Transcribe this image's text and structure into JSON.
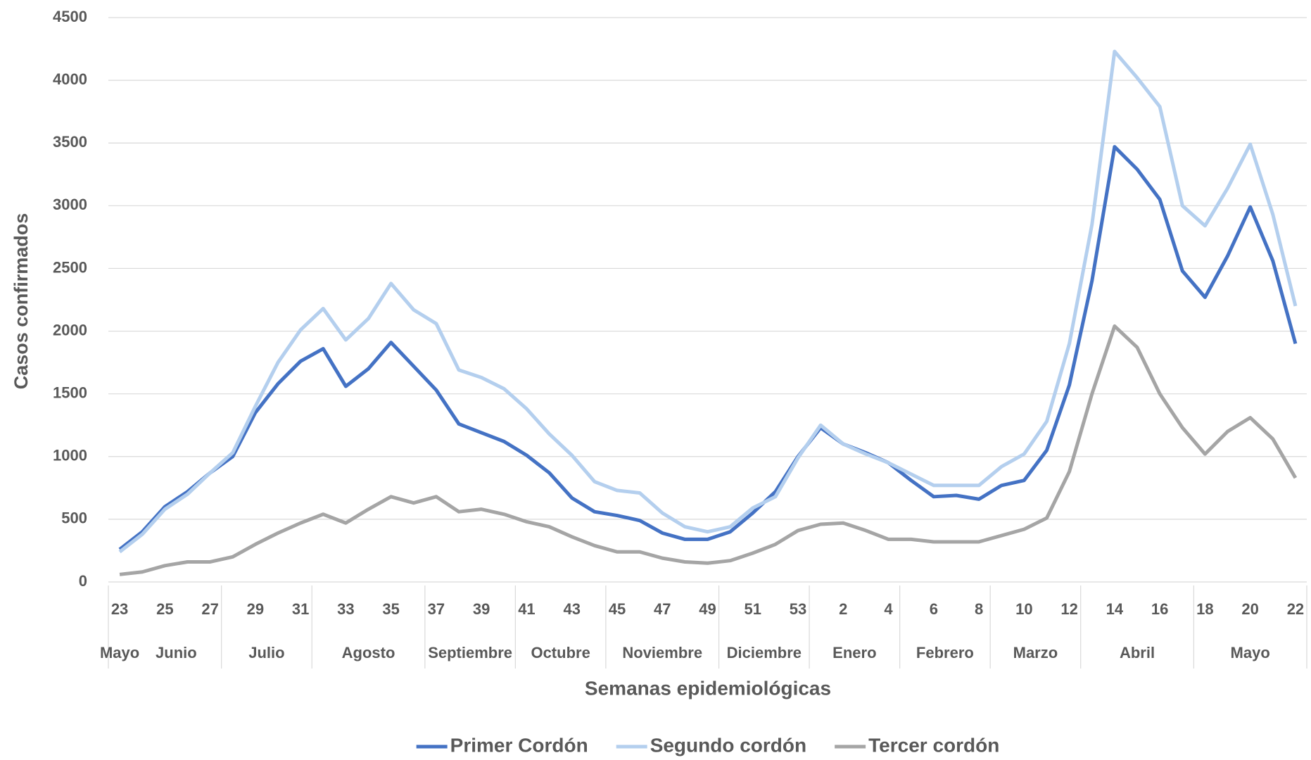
{
  "chart_data": {
    "type": "line",
    "y_label": "Casos confirmados",
    "x_label": "Semanas epidemiológicas",
    "categories": [
      "23",
      null,
      "25",
      null,
      "27",
      null,
      "29",
      null,
      "31",
      null,
      "33",
      null,
      "35",
      null,
      "37",
      null,
      "39",
      null,
      "41",
      null,
      "43",
      null,
      "45",
      null,
      "47",
      null,
      "49",
      null,
      "51",
      null,
      "53",
      null,
      "2",
      null,
      "4",
      null,
      "6",
      null,
      "8",
      null,
      "10",
      null,
      "12",
      null,
      "14",
      null,
      "16",
      null,
      "18",
      null,
      "20",
      null,
      "22"
    ],
    "months": [
      "Mayo",
      "Junio",
      "Junio",
      "Junio",
      "Junio",
      "Julio",
      "Julio",
      "Julio",
      "Julio",
      "Agosto",
      "Agosto",
      "Agosto",
      "Agosto",
      "Agosto",
      "Septiembre",
      "Septiembre",
      "Septiembre",
      "Septiembre",
      "Octubre",
      "Octubre",
      "Octubre",
      "Octubre",
      "Noviembre",
      "Noviembre",
      "Noviembre",
      "Noviembre",
      "Noviembre",
      "Diciembre",
      "Diciembre",
      "Diciembre",
      "Diciembre",
      "Enero",
      "Enero",
      "Enero",
      "Enero",
      "Febrero",
      "Febrero",
      "Febrero",
      "Febrero",
      "Marzo",
      "Marzo",
      "Marzo",
      "Marzo",
      "Abril",
      "Abril",
      "Abril",
      "Abril",
      "Abril",
      "Mayo",
      "Mayo",
      "Mayo",
      "Mayo",
      "Mayo"
    ],
    "series": [
      {
        "name": "Primer Cordón",
        "color": "#4472c4",
        "values": [
          260,
          400,
          600,
          720,
          870,
          1000,
          1350,
          1580,
          1760,
          1860,
          1560,
          1700,
          1910,
          1720,
          1530,
          1260,
          1190,
          1120,
          1010,
          870,
          670,
          560,
          530,
          490,
          390,
          340,
          340,
          400,
          550,
          720,
          1000,
          1230,
          1100,
          1030,
          950,
          810,
          680,
          690,
          660,
          770,
          810,
          1050,
          1570,
          2400,
          3470,
          3290,
          3050,
          2480,
          2270,
          2600,
          2990,
          2560,
          1900
        ]
      },
      {
        "name": "Segundo cordón",
        "color": "#b4cfee",
        "values": [
          240,
          380,
          580,
          700,
          870,
          1030,
          1400,
          1750,
          2010,
          2180,
          1930,
          2100,
          2380,
          2170,
          2060,
          1690,
          1630,
          1540,
          1380,
          1180,
          1010,
          800,
          730,
          710,
          550,
          440,
          400,
          440,
          590,
          680,
          990,
          1250,
          1100,
          1020,
          950,
          860,
          770,
          770,
          770,
          920,
          1020,
          1280,
          1900,
          2850,
          4230,
          4020,
          3790,
          3000,
          2840,
          3140,
          3490,
          2930,
          2200
        ]
      },
      {
        "name": "Tercer cordón",
        "color": "#a5a5a5",
        "values": [
          60,
          80,
          130,
          160,
          160,
          200,
          300,
          390,
          470,
          540,
          470,
          580,
          680,
          630,
          680,
          560,
          580,
          540,
          480,
          440,
          360,
          290,
          240,
          240,
          190,
          160,
          150,
          170,
          230,
          300,
          410,
          460,
          470,
          410,
          340,
          340,
          320,
          320,
          320,
          370,
          420,
          510,
          880,
          1500,
          2040,
          1870,
          1500,
          1230,
          1020,
          1200,
          1310,
          1140,
          830
        ]
      }
    ],
    "ylim": [
      0,
      4500
    ],
    "yticks": [
      0,
      500,
      1000,
      1500,
      2000,
      2500,
      3000,
      3500,
      4000,
      4500
    ],
    "grid": true,
    "legend": "bottom"
  }
}
